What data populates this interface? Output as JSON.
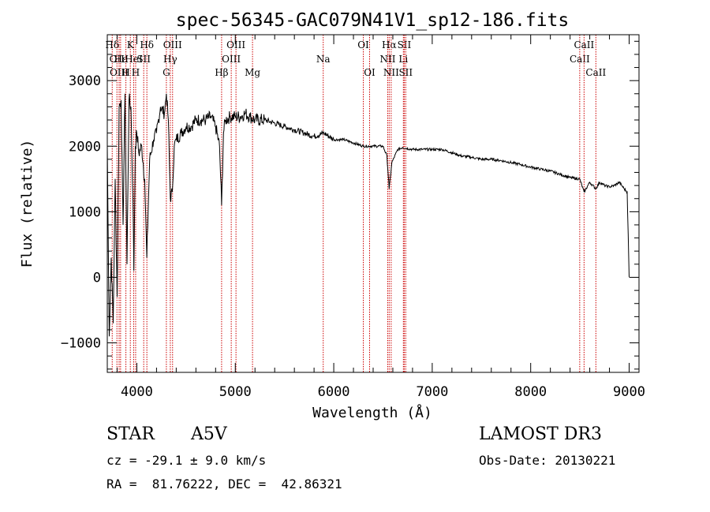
{
  "chart_data": {
    "type": "line",
    "title": "spec-56345-GAC079N41V1_sp12-186.fits",
    "xlabel": "Wavelength (Å)",
    "ylabel": "Flux (relative)",
    "xlim": [
      3700,
      9100
    ],
    "ylim": [
      -1450,
      3700
    ],
    "xticks": [
      4000,
      5000,
      6000,
      7000,
      8000,
      9000
    ],
    "yticks": [
      -1000,
      0,
      1000,
      2000,
      3000
    ],
    "x": [
      3700,
      3720,
      3740,
      3760,
      3780,
      3800,
      3820,
      3840,
      3860,
      3880,
      3900,
      3920,
      3940,
      3960,
      3970,
      3985,
      4000,
      4020,
      4050,
      4080,
      4101,
      4130,
      4170,
      4200,
      4240,
      4280,
      4300,
      4320,
      4340,
      4360,
      4380,
      4400,
      4450,
      4500,
      4550,
      4600,
      4650,
      4700,
      4750,
      4800,
      4840,
      4861,
      4880,
      4900,
      4950,
      5000,
      5050,
      5100,
      5150,
      5200,
      5300,
      5400,
      5500,
      5600,
      5700,
      5800,
      5900,
      6000,
      6100,
      6200,
      6300,
      6400,
      6500,
      6540,
      6563,
      6590,
      6650,
      6700,
      6800,
      6900,
      7000,
      7100,
      7200,
      7300,
      7400,
      7500,
      7600,
      7700,
      7800,
      7900,
      8000,
      8100,
      8200,
      8300,
      8400,
      8498,
      8542,
      8600,
      8662,
      8700,
      8750,
      8800,
      8850,
      8900,
      8950,
      8980,
      9000
    ],
    "y": [
      2000,
      -900,
      300,
      -700,
      1500,
      -300,
      2600,
      2700,
      800,
      2800,
      200,
      2700,
      2600,
      1200,
      100,
      2000,
      2200,
      1900,
      2000,
      1500,
      300,
      1800,
      2100,
      2200,
      2600,
      2500,
      2800,
      2400,
      1200,
      1300,
      2000,
      2100,
      2200,
      2300,
      2300,
      2400,
      2400,
      2400,
      2450,
      2300,
      2000,
      1100,
      2200,
      2400,
      2450,
      2450,
      2450,
      2500,
      2450,
      2400,
      2400,
      2350,
      2300,
      2250,
      2200,
      2150,
      2200,
      2100,
      2100,
      2050,
      2000,
      2000,
      2000,
      1850,
      1350,
      1750,
      1950,
      1980,
      1950,
      1950,
      1950,
      1950,
      1900,
      1850,
      1830,
      1800,
      1800,
      1780,
      1750,
      1720,
      1680,
      1650,
      1620,
      1570,
      1520,
      1500,
      1300,
      1450,
      1350,
      1450,
      1400,
      1380,
      1400,
      1450,
      1350,
      1300,
      0
    ]
  },
  "line_markers": [
    {
      "w": 3750,
      "label": "Hδ",
      "row": 0
    },
    {
      "w": 3798,
      "label": "OII",
      "row": 1
    },
    {
      "w": 3820,
      "label": "OIII",
      "row": 2
    },
    {
      "w": 3835,
      "label": "Hε",
      "row": 1
    },
    {
      "w": 3889,
      "label": "H",
      "row": 2
    },
    {
      "w": 3934,
      "label": "K",
      "row": 0
    },
    {
      "w": 3968,
      "label": "HeI",
      "row": 1
    },
    {
      "w": 3988,
      "label": "H",
      "row": 2
    },
    {
      "w": 4070,
      "label": "SII",
      "row": 1
    },
    {
      "w": 4102,
      "label": "Hδ",
      "row": 0
    },
    {
      "w": 4300,
      "label": "G",
      "row": 2
    },
    {
      "w": 4340,
      "label": "Hγ",
      "row": 1
    },
    {
      "w": 4363,
      "label": "OIII",
      "row": 0
    },
    {
      "w": 4861,
      "label": "Hβ",
      "row": 2
    },
    {
      "w": 4959,
      "label": "OIII",
      "row": 1
    },
    {
      "w": 5007,
      "label": "OIII",
      "row": 0
    },
    {
      "w": 5175,
      "label": "Mg",
      "row": 2
    },
    {
      "w": 5893,
      "label": "Na",
      "row": 1
    },
    {
      "w": 6300,
      "label": "OI",
      "row": 0
    },
    {
      "w": 6364,
      "label": "OI",
      "row": 2
    },
    {
      "w": 6548,
      "label": "NII",
      "row": 1
    },
    {
      "w": 6563,
      "label": "Hα",
      "row": 0
    },
    {
      "w": 6583,
      "label": "NII",
      "row": 2
    },
    {
      "w": 6707,
      "label": "Li",
      "row": 1
    },
    {
      "w": 6716,
      "label": "SII",
      "row": 0
    },
    {
      "w": 6731,
      "label": "SII",
      "row": 2
    },
    {
      "w": 8498,
      "label": "CaII",
      "row": 1
    },
    {
      "w": 8542,
      "label": "CaII",
      "row": 0
    },
    {
      "w": 8662,
      "label": "CaII",
      "row": 2
    }
  ],
  "info": {
    "object_class": "STAR",
    "subclass": "A5V",
    "survey": "LAMOST DR3",
    "redshift_text": "cz = -29.1 ± 9.0 km/s",
    "obs_date": "Obs-Date: 20130221",
    "coords": "RA =  81.76222, DEC =  42.86321"
  },
  "colors": {
    "line_marker": "#cc0000",
    "spectrum": "#000000"
  }
}
